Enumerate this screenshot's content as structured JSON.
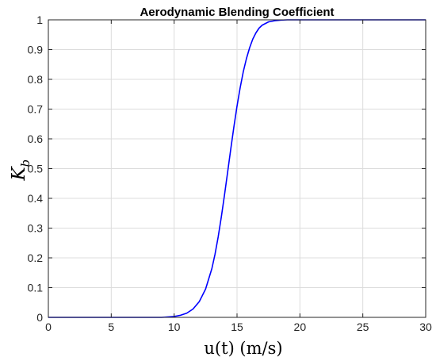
{
  "chart_data": {
    "type": "line",
    "title": "Aerodynamic Blending Coefficient",
    "xlabel": "u(t) (m/s)",
    "ylabel": {
      "main": "K",
      "sub": "b"
    },
    "xlim": [
      0,
      30
    ],
    "ylim": [
      0,
      1
    ],
    "x_ticks": [
      0,
      5,
      10,
      15,
      20,
      25,
      30
    ],
    "x_tick_labels": [
      "0",
      "5",
      "10",
      "15",
      "20",
      "25",
      "30"
    ],
    "y_ticks": [
      0,
      0.1,
      0.2,
      0.3,
      0.4,
      0.5,
      0.6,
      0.7,
      0.8,
      0.9,
      1
    ],
    "y_tick_labels": [
      "0",
      "0.1",
      "0.2",
      "0.3",
      "0.4",
      "0.5",
      "0.6",
      "0.7",
      "0.8",
      "0.9",
      "1"
    ],
    "grid": true,
    "series": [
      {
        "color": "#0000ff",
        "x": [
          0,
          2,
          4,
          6,
          8,
          9,
          10,
          10.5,
          11,
          11.5,
          12,
          12.5,
          13,
          13.25,
          13.5,
          13.75,
          14,
          14.25,
          14.5,
          14.75,
          15,
          15.25,
          15.5,
          15.75,
          16,
          16.25,
          16.5,
          16.75,
          17,
          17.5,
          18,
          18.5,
          19,
          19.5,
          20,
          22,
          25,
          30
        ],
        "y": [
          0,
          0,
          0,
          0,
          0,
          0,
          0.003,
          0.007,
          0.014,
          0.028,
          0.053,
          0.095,
          0.164,
          0.212,
          0.27,
          0.337,
          0.41,
          0.487,
          0.565,
          0.64,
          0.71,
          0.772,
          0.826,
          0.87,
          0.906,
          0.935,
          0.956,
          0.972,
          0.982,
          0.993,
          0.997,
          0.999,
          1,
          1,
          1,
          1,
          1,
          1
        ]
      }
    ]
  }
}
